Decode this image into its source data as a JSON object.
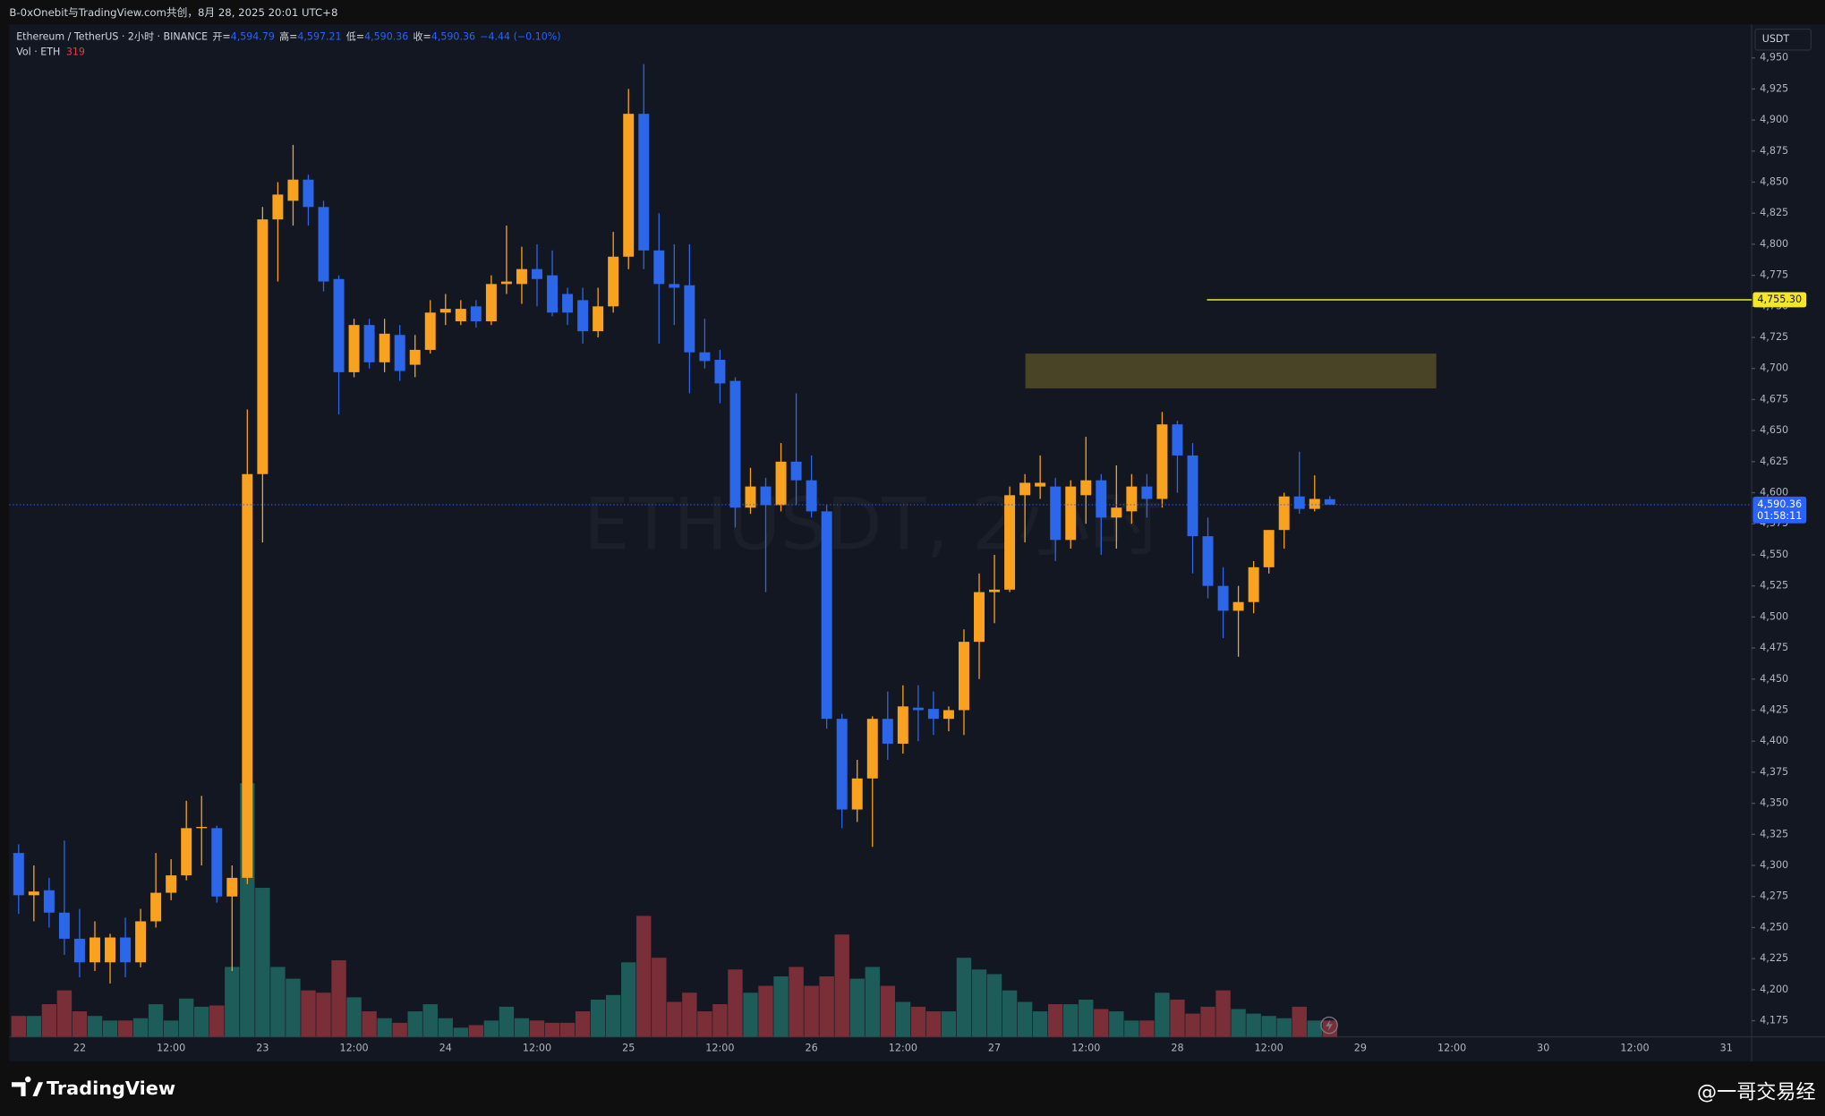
{
  "chart_data": {
    "type": "candlestick",
    "header": "B-0xOnebit与TradingView.com共创，8月 28, 2025 20:01 UTC+8",
    "legend": {
      "symbol": "Ethereum / TetherUS · 2小时 · BINANCE",
      "open_label": "开=",
      "open": "4,594.79",
      "high_label": "高=",
      "high": "4,597.21",
      "low_label": "低=",
      "low": "4,590.36",
      "close_label": "收=",
      "close": "4,590.36",
      "change": "−4.44 (−0.10%)",
      "volume_label": "Vol · ETH",
      "volume": "319"
    },
    "watermark": "ETHUSDT, 2小时",
    "currency": "USDT",
    "up_color": "#f9a21f",
    "down_color": "#2b67e8",
    "volume_up_color": "#1d5c59",
    "volume_down_color": "#7a2f38",
    "open": [
      4310,
      4276,
      4280,
      4262,
      4241,
      4222,
      4222,
      4242,
      4222,
      4255,
      4278,
      4292,
      4330,
      4330,
      4275,
      4290,
      4615,
      4820,
      4835,
      4852,
      4830,
      4772,
      4697,
      4735,
      4705,
      4727,
      4703,
      4715,
      4745,
      4738,
      4750,
      4738,
      4768,
      4768,
      4780,
      4775,
      4760,
      4755,
      4730,
      4750,
      4790,
      4905,
      4795,
      4768,
      4767,
      4713,
      4707,
      4690,
      4588,
      4605,
      4590,
      4625,
      4610,
      4585,
      4418,
      4345,
      4370,
      4418,
      4398,
      4427,
      4426,
      4418,
      4425,
      4480,
      4520,
      4522,
      4598,
      4605,
      4605,
      4562,
      4598,
      4610,
      4580,
      4585,
      4605,
      4595,
      4655,
      4630,
      4565,
      4525,
      4505,
      4512,
      4540,
      4570,
      4597,
      4587,
      4594.79
    ],
    "high": [
      4317,
      4300,
      4290,
      4320,
      4265,
      4255,
      4245,
      4258,
      4265,
      4310,
      4305,
      4352,
      4356,
      4332,
      4300,
      4667,
      4830,
      4850,
      4880,
      4856,
      4835,
      4775,
      4740,
      4740,
      4740,
      4735,
      4727,
      4755,
      4760,
      4755,
      4755,
      4775,
      4815,
      4798,
      4800,
      4795,
      4765,
      4765,
      4765,
      4810,
      4925,
      4945,
      4825,
      4800,
      4800,
      4740,
      4715,
      4693,
      4620,
      4612,
      4640,
      4680,
      4630,
      4590,
      4422,
      4385,
      4420,
      4440,
      4445,
      4445,
      4440,
      4428,
      4490,
      4535,
      4550,
      4605,
      4615,
      4630,
      4612,
      4610,
      4645,
      4615,
      4622,
      4615,
      4615,
      4665,
      4658,
      4640,
      4580,
      4540,
      4525,
      4545,
      4570,
      4600,
      4633,
      4614,
      4597.21
    ],
    "low": [
      4261,
      4255,
      4250,
      4228,
      4210,
      4215,
      4205,
      4210,
      4218,
      4250,
      4272,
      4288,
      4300,
      4270,
      4215,
      4285,
      4560,
      4770,
      4815,
      4815,
      4762,
      4663,
      4693,
      4700,
      4697,
      4690,
      4693,
      4712,
      4735,
      4735,
      4733,
      4735,
      4760,
      4752,
      4750,
      4742,
      4735,
      4720,
      4725,
      4745,
      4780,
      4780,
      4720,
      4735,
      4680,
      4700,
      4672,
      4572,
      4583,
      4520,
      4585,
      4590,
      4580,
      4410,
      4330,
      4335,
      4315,
      4385,
      4390,
      4400,
      4405,
      4408,
      4405,
      4450,
      4495,
      4520,
      4560,
      4595,
      4545,
      4555,
      4575,
      4550,
      4555,
      4575,
      4580,
      4588,
      4600,
      4535,
      4515,
      4483,
      4468,
      4503,
      4535,
      4555,
      4583,
      4585,
      4590.36
    ],
    "close": [
      4276,
      4279,
      4262,
      4241,
      4222,
      4242,
      4242,
      4222,
      4255,
      4278,
      4292,
      4330,
      4331,
      4275,
      4290,
      4615,
      4820,
      4840,
      4852,
      4830,
      4770,
      4697,
      4735,
      4705,
      4728,
      4698,
      4715,
      4745,
      4748,
      4748,
      4738,
      4768,
      4770,
      4780,
      4772,
      4745,
      4745,
      4730,
      4750,
      4790,
      4905,
      4795,
      4768,
      4765,
      4713,
      4706,
      4688,
      4588,
      4605,
      4590,
      4625,
      4610,
      4585,
      4418,
      4345,
      4370,
      4418,
      4398,
      4428,
      4425,
      4418,
      4425,
      4480,
      4520,
      4522,
      4598,
      4608,
      4608,
      4562,
      4605,
      4610,
      4580,
      4588,
      4605,
      4595,
      4655,
      4630,
      4565,
      4525,
      4505,
      4512,
      4540,
      4570,
      4597,
      4587,
      4595,
      4590.36
    ],
    "volume": [
      410,
      410,
      640,
      910,
      500,
      410,
      320,
      320,
      365,
      640,
      320,
      750,
      590,
      615,
      1370,
      4970,
      2920,
      1370,
      1140,
      910,
      865,
      1500,
      775,
      500,
      365,
      275,
      500,
      640,
      365,
      180,
      230,
      320,
      590,
      365,
      320,
      275,
      275,
      500,
      730,
      820,
      1460,
      2370,
      1550,
      685,
      865,
      500,
      640,
      1320,
      865,
      1000,
      1185,
      1370,
      1000,
      1185,
      2005,
      1140,
      1370,
      1000,
      685,
      590,
      500,
      500,
      1550,
      1320,
      1230,
      910,
      685,
      500,
      640,
      640,
      730,
      545,
      500,
      320,
      320,
      865,
      730,
      455,
      590,
      910,
      545,
      455,
      410,
      365,
      590,
      320,
      319
    ],
    "ylim": [
      4162,
      4976
    ],
    "yticks": [
      {
        "value": 4175,
        "label": "4,175"
      },
      {
        "value": 4200,
        "label": "4,200"
      },
      {
        "value": 4225,
        "label": "4,225"
      },
      {
        "value": 4250,
        "label": "4,250"
      },
      {
        "value": 4275,
        "label": "4,275"
      },
      {
        "value": 4300,
        "label": "4,300"
      },
      {
        "value": 4325,
        "label": "4,325"
      },
      {
        "value": 4350,
        "label": "4,350"
      },
      {
        "value": 4375,
        "label": "4,375"
      },
      {
        "value": 4400,
        "label": "4,400"
      },
      {
        "value": 4425,
        "label": "4,425"
      },
      {
        "value": 4450,
        "label": "4,450"
      },
      {
        "value": 4475,
        "label": "4,475"
      },
      {
        "value": 4500,
        "label": "4,500"
      },
      {
        "value": 4525,
        "label": "4,525"
      },
      {
        "value": 4550,
        "label": "4,550"
      },
      {
        "value": 4575,
        "label": "4,575"
      },
      {
        "value": 4600,
        "label": "4,600"
      },
      {
        "value": 4625,
        "label": "4,625"
      },
      {
        "value": 4650,
        "label": "4,650"
      },
      {
        "value": 4675,
        "label": "4,675"
      },
      {
        "value": 4700,
        "label": "4,700"
      },
      {
        "value": 4725,
        "label": "4,725"
      },
      {
        "value": 4750,
        "label": "4,750"
      },
      {
        "value": 4775,
        "label": "4,775"
      },
      {
        "value": 4800,
        "label": "4,800"
      },
      {
        "value": 4825,
        "label": "4,825"
      },
      {
        "value": 4850,
        "label": "4,850"
      },
      {
        "value": 4875,
        "label": "4,875"
      },
      {
        "value": 4900,
        "label": "4,900"
      },
      {
        "value": 4925,
        "label": "4,925"
      },
      {
        "value": 4950,
        "label": "4,950"
      }
    ],
    "time_labels": [
      "22",
      "12:00",
      "23",
      "12:00",
      "24",
      "12:00",
      "25",
      "12:00",
      "26",
      "12:00",
      "27",
      "12:00",
      "28",
      "12:00",
      "29",
      "12:00",
      "30",
      "12:00",
      "31"
    ],
    "hline": {
      "value": 4755.3,
      "label": "4,755.30",
      "color": "#f2e52a"
    },
    "zone": {
      "top": 4712,
      "bottom": 4684,
      "color": "#4a4427"
    },
    "last_price": {
      "value": 4590.36,
      "label": "4,590.36",
      "countdown": "01:58:11",
      "color": "#2962ff"
    },
    "grid": false
  }
}
